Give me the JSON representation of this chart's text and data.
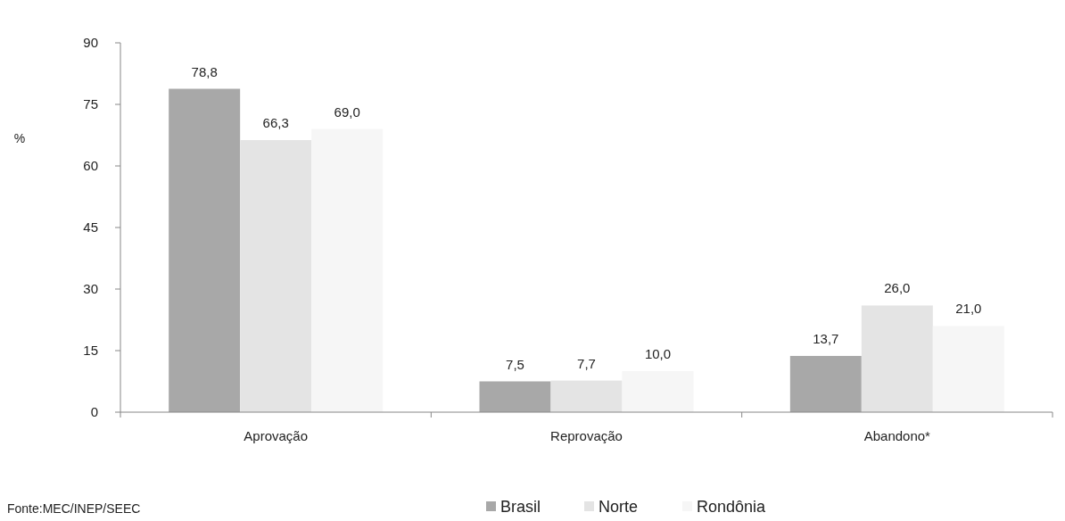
{
  "chart_data": {
    "type": "bar",
    "ylabel": "%",
    "categories": [
      "Aprovação",
      "Reprovação",
      "Abandono*"
    ],
    "series": [
      {
        "name": "Brasil",
        "color": "#a8a8a8",
        "values": [
          78.8,
          7.5,
          13.7
        ],
        "value_labels": [
          "78,8",
          "7,5",
          "13,7"
        ]
      },
      {
        "name": "Norte",
        "color": "#e4e4e4",
        "values": [
          66.3,
          7.7,
          26.0
        ],
        "value_labels": [
          "66,3",
          "7,7",
          "26,0"
        ]
      },
      {
        "name": "Rondônia",
        "color": "#f6f6f6",
        "values": [
          69.0,
          10.0,
          21.0
        ],
        "value_labels": [
          "69,0",
          "10,0",
          "21,0"
        ]
      }
    ],
    "ylim": [
      0,
      90
    ],
    "yticks": [
      0,
      15,
      30,
      45,
      60,
      75,
      90
    ],
    "grid": false,
    "legend": "bottom",
    "annotations": [
      "Fonte:MEC/INEP/SEEC"
    ]
  }
}
